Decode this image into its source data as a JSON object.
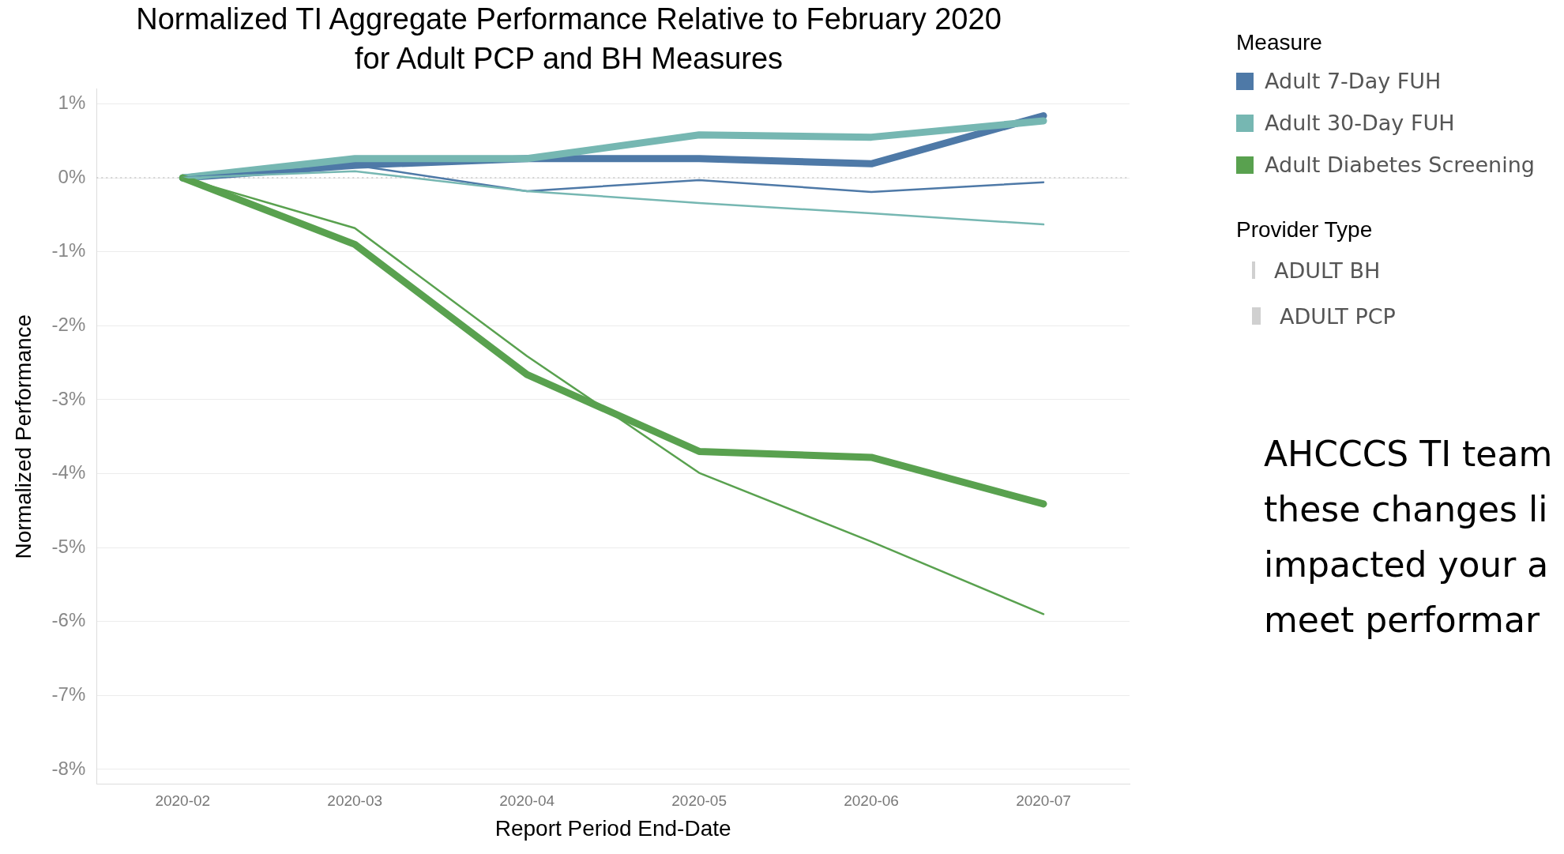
{
  "chart_data": {
    "type": "line",
    "title": "Normalized TI Aggregate Performance Relative to February 2020\nfor Adult PCP and BH Measures",
    "xlabel": "Report Period End-Date",
    "ylabel": "Normalized Performance",
    "legend_title": "Measure",
    "legend": "right",
    "categories": [
      "2020-02",
      "2020-03",
      "2020-04",
      "2020-05",
      "2020-06",
      "2020-07"
    ],
    "series": [
      {
        "name": "Adult 7-Day FUH",
        "color": "#4e79a7",
        "values": [
          0,
          0.17,
          0.26,
          0.26,
          0.19,
          0.84
        ]
      },
      {
        "name": "Adult 30-Day FUH",
        "color": "#76b7b2",
        "values": [
          0,
          0.26,
          0.26,
          0.58,
          0.55,
          0.77
        ]
      },
      {
        "name": "Adult Diabetes Screening",
        "color": "#59a14f",
        "values": [
          0,
          -0.9,
          -2.66,
          -3.7,
          -3.78,
          -4.41
        ]
      },
      {
        "color": "#4e79a7",
        "values": [
          0,
          0.17,
          -0.18,
          -0.03,
          -0.19,
          -0.06
        ]
      },
      {
        "color": "#76b7b2",
        "values": [
          0,
          0.09,
          -0.18,
          -0.34,
          -0.48,
          -0.63
        ]
      },
      {
        "color": "#59a14f",
        "values": [
          0,
          -0.68,
          -2.41,
          -3.99,
          -4.92,
          -5.9
        ]
      }
    ],
    "ylim": [
      -8.2,
      1.2
    ],
    "yticks": [
      {
        "value": -8,
        "label": "-8%"
      },
      {
        "value": -7,
        "label": "-7%"
      },
      {
        "value": -6,
        "label": "-6%"
      },
      {
        "value": -5,
        "label": "-5%"
      },
      {
        "value": -4,
        "label": "-4%"
      },
      {
        "value": -3,
        "label": "-3%"
      },
      {
        "value": -2,
        "label": "-2%"
      },
      {
        "value": -1,
        "label": "-1%"
      },
      {
        "value": 0,
        "label": "0%"
      },
      {
        "value": 1,
        "label": "1%"
      }
    ],
    "grid": "y",
    "marker": "none",
    "line_style": "solid",
    "ref_lines": [
      {
        "axis": "y",
        "value": 0,
        "color": "#c8c8c8",
        "line_style": "dotted"
      }
    ],
    "annotations": [
      "Provider Type",
      "ADULT BH",
      "ADULT PCP",
      "AHCCCS TI team\nthese changes li\nimpacted your a\nmeet performar"
    ]
  }
}
